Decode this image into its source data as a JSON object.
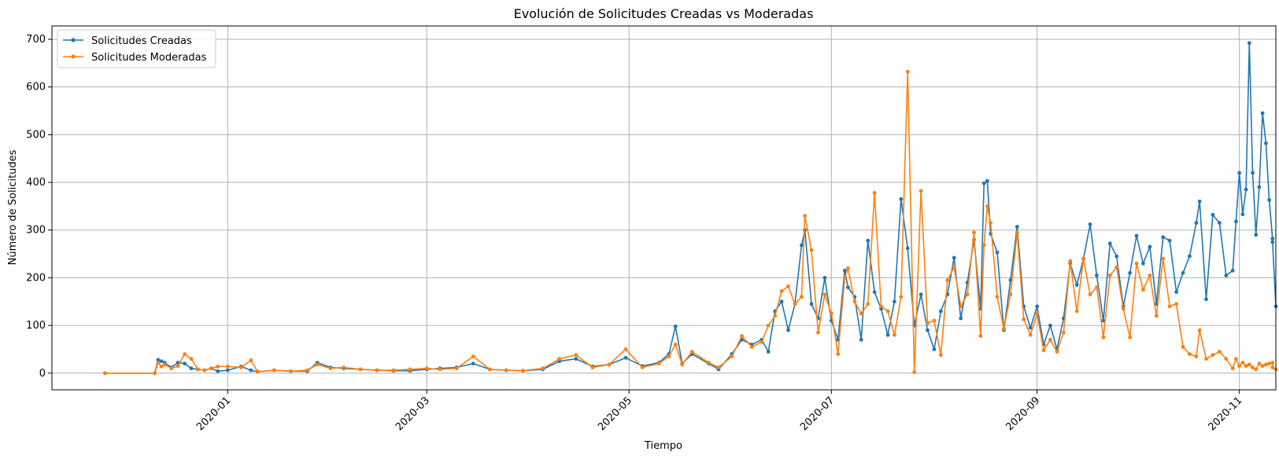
{
  "chart_data": {
    "type": "line",
    "title": "Evolución de Solicitudes Creadas vs Moderadas",
    "xlabel": "Tiempo",
    "ylabel": "Número de Solicitudes",
    "xlim": [
      "2019-11-09",
      "2020-11-12"
    ],
    "ylim": [
      -35,
      728
    ],
    "grid": true,
    "legend_position": "top-left",
    "x_ticks": [
      "2020-01",
      "2020-03",
      "2020-05",
      "2020-07",
      "2020-09",
      "2020-11"
    ],
    "y_ticks": [
      0,
      100,
      200,
      300,
      400,
      500,
      600,
      700
    ],
    "series": [
      {
        "name": "Solicitudes Creadas",
        "color": "#1f77b4",
        "points": [
          [
            "2019-11-25",
            0
          ],
          [
            "2019-12-10",
            0
          ],
          [
            "2019-12-11",
            28
          ],
          [
            "2019-12-12",
            25
          ],
          [
            "2019-12-13",
            22
          ],
          [
            "2019-12-15",
            12
          ],
          [
            "2019-12-17",
            22
          ],
          [
            "2019-12-19",
            20
          ],
          [
            "2019-12-21",
            10
          ],
          [
            "2019-12-23",
            8
          ],
          [
            "2019-12-25",
            6
          ],
          [
            "2019-12-27",
            10
          ],
          [
            "2019-12-29",
            4
          ],
          [
            "2020-01-01",
            6
          ],
          [
            "2020-01-05",
            14
          ],
          [
            "2020-01-08",
            6
          ],
          [
            "2020-01-10",
            3
          ],
          [
            "2020-01-15",
            6
          ],
          [
            "2020-01-20",
            4
          ],
          [
            "2020-01-25",
            4
          ],
          [
            "2020-01-28",
            22
          ],
          [
            "2020-02-01",
            12
          ],
          [
            "2020-02-05",
            10
          ],
          [
            "2020-02-10",
            8
          ],
          [
            "2020-02-15",
            6
          ],
          [
            "2020-02-20",
            5
          ],
          [
            "2020-02-25",
            5
          ],
          [
            "2020-03-01",
            8
          ],
          [
            "2020-03-05",
            10
          ],
          [
            "2020-03-10",
            12
          ],
          [
            "2020-03-15",
            20
          ],
          [
            "2020-03-20",
            8
          ],
          [
            "2020-03-25",
            6
          ],
          [
            "2020-03-30",
            5
          ],
          [
            "2020-04-05",
            8
          ],
          [
            "2020-04-10",
            25
          ],
          [
            "2020-04-15",
            30
          ],
          [
            "2020-04-20",
            14
          ],
          [
            "2020-04-25",
            18
          ],
          [
            "2020-04-30",
            32
          ],
          [
            "2020-05-05",
            15
          ],
          [
            "2020-05-10",
            22
          ],
          [
            "2020-05-13",
            40
          ],
          [
            "2020-05-15",
            98
          ],
          [
            "2020-05-17",
            20
          ],
          [
            "2020-05-20",
            40
          ],
          [
            "2020-05-25",
            20
          ],
          [
            "2020-05-28",
            8
          ],
          [
            "2020-06-01",
            40
          ],
          [
            "2020-06-04",
            70
          ],
          [
            "2020-06-07",
            60
          ],
          [
            "2020-06-10",
            70
          ],
          [
            "2020-06-12",
            45
          ],
          [
            "2020-06-14",
            130
          ],
          [
            "2020-06-16",
            150
          ],
          [
            "2020-06-18",
            90
          ],
          [
            "2020-06-20",
            145
          ],
          [
            "2020-06-22",
            268
          ],
          [
            "2020-06-23",
            300
          ],
          [
            "2020-06-25",
            145
          ],
          [
            "2020-06-27",
            115
          ],
          [
            "2020-06-29",
            200
          ],
          [
            "2020-07-01",
            110
          ],
          [
            "2020-07-03",
            70
          ],
          [
            "2020-07-05",
            215
          ],
          [
            "2020-07-06",
            180
          ],
          [
            "2020-07-08",
            160
          ],
          [
            "2020-07-10",
            70
          ],
          [
            "2020-07-12",
            278
          ],
          [
            "2020-07-14",
            170
          ],
          [
            "2020-07-16",
            135
          ],
          [
            "2020-07-18",
            80
          ],
          [
            "2020-07-20",
            150
          ],
          [
            "2020-07-22",
            365
          ],
          [
            "2020-07-24",
            262
          ],
          [
            "2020-07-26",
            100
          ],
          [
            "2020-07-28",
            165
          ],
          [
            "2020-07-30",
            90
          ],
          [
            "2020-08-01",
            50
          ],
          [
            "2020-08-03",
            130
          ],
          [
            "2020-08-05",
            165
          ],
          [
            "2020-08-07",
            242
          ],
          [
            "2020-08-09",
            115
          ],
          [
            "2020-08-11",
            190
          ],
          [
            "2020-08-13",
            280
          ],
          [
            "2020-08-15",
            135
          ],
          [
            "2020-08-16",
            398
          ],
          [
            "2020-08-17",
            403
          ],
          [
            "2020-08-18",
            292
          ],
          [
            "2020-08-20",
            253
          ],
          [
            "2020-08-22",
            90
          ],
          [
            "2020-08-24",
            195
          ],
          [
            "2020-08-26",
            307
          ],
          [
            "2020-08-28",
            140
          ],
          [
            "2020-08-30",
            95
          ],
          [
            "2020-09-01",
            140
          ],
          [
            "2020-09-03",
            60
          ],
          [
            "2020-09-05",
            100
          ],
          [
            "2020-09-07",
            50
          ],
          [
            "2020-09-09",
            115
          ],
          [
            "2020-09-11",
            230
          ],
          [
            "2020-09-13",
            185
          ],
          [
            "2020-09-15",
            240
          ],
          [
            "2020-09-17",
            312
          ],
          [
            "2020-09-19",
            205
          ],
          [
            "2020-09-21",
            110
          ],
          [
            "2020-09-23",
            272
          ],
          [
            "2020-09-25",
            245
          ],
          [
            "2020-09-27",
            140
          ],
          [
            "2020-09-29",
            210
          ],
          [
            "2020-10-01",
            288
          ],
          [
            "2020-10-03",
            230
          ],
          [
            "2020-10-05",
            265
          ],
          [
            "2020-10-07",
            145
          ],
          [
            "2020-10-09",
            285
          ],
          [
            "2020-10-11",
            278
          ],
          [
            "2020-10-13",
            170
          ],
          [
            "2020-10-15",
            210
          ],
          [
            "2020-10-17",
            245
          ],
          [
            "2020-10-19",
            315
          ],
          [
            "2020-10-20",
            360
          ],
          [
            "2020-10-22",
            155
          ],
          [
            "2020-10-24",
            332
          ],
          [
            "2020-10-26",
            315
          ],
          [
            "2020-10-28",
            205
          ],
          [
            "2020-10-30",
            215
          ],
          [
            "2020-10-31",
            318
          ],
          [
            "2020-11-01",
            420
          ],
          [
            "2020-11-02",
            333
          ],
          [
            "2020-11-03",
            385
          ],
          [
            "2020-11-04",
            692
          ],
          [
            "2020-11-05",
            420
          ],
          [
            "2020-11-06",
            290
          ],
          [
            "2020-11-07",
            390
          ],
          [
            "2020-11-08",
            545
          ],
          [
            "2020-11-09",
            482
          ],
          [
            "2020-11-10",
            363
          ],
          [
            "2020-11-11",
            282
          ],
          [
            "2020-11-11",
            275
          ],
          [
            "2020-11-12",
            140
          ]
        ]
      },
      {
        "name": "Solicitudes Moderadas",
        "color": "#ff7f0e",
        "points": [
          [
            "2019-11-25",
            0
          ],
          [
            "2019-12-10",
            0
          ],
          [
            "2019-12-11",
            22
          ],
          [
            "2019-12-12",
            14
          ],
          [
            "2019-12-13",
            18
          ],
          [
            "2019-12-15",
            10
          ],
          [
            "2019-12-17",
            15
          ],
          [
            "2019-12-19",
            40
          ],
          [
            "2019-12-21",
            30
          ],
          [
            "2019-12-23",
            8
          ],
          [
            "2019-12-25",
            6
          ],
          [
            "2019-12-27",
            10
          ],
          [
            "2019-12-29",
            14
          ],
          [
            "2020-01-01",
            14
          ],
          [
            "2020-01-05",
            12
          ],
          [
            "2020-01-08",
            27
          ],
          [
            "2020-01-10",
            3
          ],
          [
            "2020-01-15",
            6
          ],
          [
            "2020-01-20",
            4
          ],
          [
            "2020-01-25",
            6
          ],
          [
            "2020-01-28",
            18
          ],
          [
            "2020-02-01",
            10
          ],
          [
            "2020-02-05",
            12
          ],
          [
            "2020-02-10",
            8
          ],
          [
            "2020-02-15",
            6
          ],
          [
            "2020-02-20",
            6
          ],
          [
            "2020-02-25",
            8
          ],
          [
            "2020-03-01",
            10
          ],
          [
            "2020-03-05",
            8
          ],
          [
            "2020-03-10",
            10
          ],
          [
            "2020-03-15",
            35
          ],
          [
            "2020-03-20",
            8
          ],
          [
            "2020-03-25",
            6
          ],
          [
            "2020-03-30",
            5
          ],
          [
            "2020-04-05",
            10
          ],
          [
            "2020-04-10",
            30
          ],
          [
            "2020-04-15",
            38
          ],
          [
            "2020-04-20",
            12
          ],
          [
            "2020-04-25",
            18
          ],
          [
            "2020-04-30",
            50
          ],
          [
            "2020-05-05",
            12
          ],
          [
            "2020-05-10",
            20
          ],
          [
            "2020-05-13",
            35
          ],
          [
            "2020-05-15",
            60
          ],
          [
            "2020-05-17",
            18
          ],
          [
            "2020-05-20",
            45
          ],
          [
            "2020-05-25",
            22
          ],
          [
            "2020-05-28",
            12
          ],
          [
            "2020-06-01",
            35
          ],
          [
            "2020-06-04",
            78
          ],
          [
            "2020-06-07",
            55
          ],
          [
            "2020-06-10",
            65
          ],
          [
            "2020-06-12",
            100
          ],
          [
            "2020-06-14",
            120
          ],
          [
            "2020-06-16",
            172
          ],
          [
            "2020-06-18",
            182
          ],
          [
            "2020-06-20",
            145
          ],
          [
            "2020-06-22",
            160
          ],
          [
            "2020-06-23",
            330
          ],
          [
            "2020-06-25",
            258
          ],
          [
            "2020-06-27",
            85
          ],
          [
            "2020-06-29",
            165
          ],
          [
            "2020-07-01",
            125
          ],
          [
            "2020-07-03",
            40
          ],
          [
            "2020-07-05",
            200
          ],
          [
            "2020-07-06",
            220
          ],
          [
            "2020-07-08",
            150
          ],
          [
            "2020-07-10",
            125
          ],
          [
            "2020-07-12",
            145
          ],
          [
            "2020-07-14",
            378
          ],
          [
            "2020-07-16",
            140
          ],
          [
            "2020-07-18",
            130
          ],
          [
            "2020-07-20",
            80
          ],
          [
            "2020-07-22",
            160
          ],
          [
            "2020-07-24",
            632
          ],
          [
            "2020-07-26",
            2
          ],
          [
            "2020-07-28",
            382
          ],
          [
            "2020-07-30",
            105
          ],
          [
            "2020-08-01",
            110
          ],
          [
            "2020-08-03",
            38
          ],
          [
            "2020-08-05",
            195
          ],
          [
            "2020-08-07",
            222
          ],
          [
            "2020-08-09",
            140
          ],
          [
            "2020-08-11",
            165
          ],
          [
            "2020-08-13",
            295
          ],
          [
            "2020-08-15",
            78
          ],
          [
            "2020-08-16",
            268
          ],
          [
            "2020-08-17",
            350
          ],
          [
            "2020-08-18",
            315
          ],
          [
            "2020-08-20",
            160
          ],
          [
            "2020-08-22",
            93
          ],
          [
            "2020-08-24",
            165
          ],
          [
            "2020-08-26",
            295
          ],
          [
            "2020-08-28",
            113
          ],
          [
            "2020-08-30",
            80
          ],
          [
            "2020-09-01",
            125
          ],
          [
            "2020-09-03",
            48
          ],
          [
            "2020-09-05",
            70
          ],
          [
            "2020-09-07",
            45
          ],
          [
            "2020-09-09",
            85
          ],
          [
            "2020-09-11",
            235
          ],
          [
            "2020-09-13",
            130
          ],
          [
            "2020-09-15",
            240
          ],
          [
            "2020-09-17",
            165
          ],
          [
            "2020-09-19",
            180
          ],
          [
            "2020-09-21",
            75
          ],
          [
            "2020-09-23",
            205
          ],
          [
            "2020-09-25",
            222
          ],
          [
            "2020-09-27",
            135
          ],
          [
            "2020-09-29",
            75
          ],
          [
            "2020-10-01",
            230
          ],
          [
            "2020-10-03",
            175
          ],
          [
            "2020-10-05",
            205
          ],
          [
            "2020-10-07",
            120
          ],
          [
            "2020-10-09",
            240
          ],
          [
            "2020-10-11",
            140
          ],
          [
            "2020-10-13",
            145
          ],
          [
            "2020-10-15",
            55
          ],
          [
            "2020-10-17",
            40
          ],
          [
            "2020-10-19",
            35
          ],
          [
            "2020-10-20",
            90
          ],
          [
            "2020-10-22",
            30
          ],
          [
            "2020-10-24",
            38
          ],
          [
            "2020-10-26",
            45
          ],
          [
            "2020-10-28",
            30
          ],
          [
            "2020-10-30",
            10
          ],
          [
            "2020-10-31",
            30
          ],
          [
            "2020-11-01",
            15
          ],
          [
            "2020-11-02",
            22
          ],
          [
            "2020-11-03",
            15
          ],
          [
            "2020-11-04",
            18
          ],
          [
            "2020-11-05",
            12
          ],
          [
            "2020-11-06",
            8
          ],
          [
            "2020-11-07",
            20
          ],
          [
            "2020-11-08",
            15
          ],
          [
            "2020-11-09",
            18
          ],
          [
            "2020-11-10",
            20
          ],
          [
            "2020-11-11",
            22
          ],
          [
            "2020-11-11",
            12
          ],
          [
            "2020-11-12",
            8
          ]
        ]
      }
    ]
  }
}
